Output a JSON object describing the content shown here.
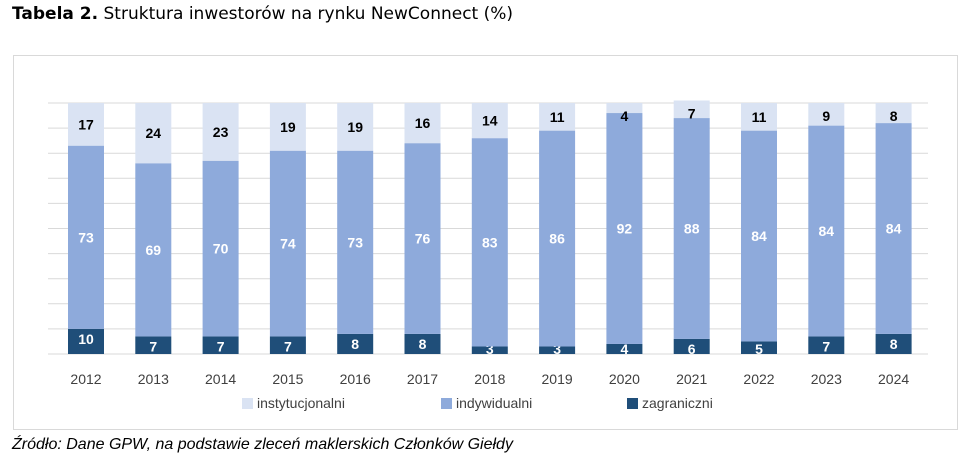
{
  "title": {
    "prefix": "Tabela 2.",
    "text": "Struktura inwestorów na rynku NewConnect (%)"
  },
  "source": "Źródło: Dane GPW, na podstawie zleceń maklerskich Członków Giełdy",
  "chart_data": {
    "type": "bar",
    "stacked": true,
    "title": "",
    "categories": [
      "2012",
      "2013",
      "2014",
      "2015",
      "2016",
      "2017",
      "2018",
      "2019",
      "2020",
      "2021",
      "2022",
      "2023",
      "2024"
    ],
    "series": [
      {
        "name": "zagraniczni",
        "color": "#1f4e79",
        "values": [
          10,
          7,
          7,
          7,
          8,
          8,
          3,
          3,
          4,
          6,
          5,
          7,
          8
        ]
      },
      {
        "name": "indywidualni",
        "color": "#8eaadb",
        "values": [
          73,
          69,
          70,
          74,
          73,
          76,
          83,
          86,
          92,
          88,
          84,
          84,
          84
        ]
      },
      {
        "name": "instytucjonalni",
        "color": "#dae3f3",
        "values": [
          17,
          24,
          23,
          19,
          19,
          16,
          14,
          11,
          4,
          7,
          11,
          9,
          8
        ]
      }
    ],
    "legend_order": [
      "instytucjonalni",
      "indywidualni",
      "zagraniczni"
    ],
    "ylim": [
      0,
      100
    ],
    "grid": true,
    "legend_position": "bottom"
  }
}
